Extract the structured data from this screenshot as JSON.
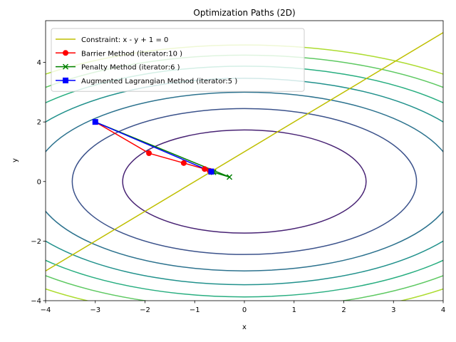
{
  "chart_data": {
    "type": "line",
    "title": "Optimization Paths (2D)",
    "xlabel": "x",
    "ylabel": "y",
    "xlim": [
      -4,
      4
    ],
    "ylim": [
      -4,
      5.4
    ],
    "xticks": [
      -4,
      -3,
      -2,
      -1,
      0,
      1,
      2,
      3,
      4
    ],
    "yticks": [
      -4,
      -2,
      0,
      2,
      4
    ],
    "grid": false,
    "legend_position": "top-left",
    "contours": {
      "function": "x^2 + 2*y^2",
      "levels": [
        6,
        12,
        18,
        24,
        30,
        36,
        42
      ],
      "colors": [
        "#482374",
        "#3b528b",
        "#2c728e",
        "#21918c",
        "#28ae80",
        "#5ec962",
        "#addc30"
      ]
    },
    "series": [
      {
        "name": "Constraint: x - y + 1 = 0",
        "color": "#bfbf00",
        "marker": "none",
        "x": [
          -4,
          4
        ],
        "y": [
          -3,
          5
        ]
      },
      {
        "name": "Barrier Method (iterator:10 )",
        "color": "#ff0000",
        "marker": "circle",
        "x": [
          -3.0,
          -1.92,
          -1.22,
          -0.8,
          -0.7,
          -0.67,
          -0.667,
          -0.667,
          -0.667,
          -0.667
        ],
        "y": [
          2.0,
          0.95,
          0.62,
          0.42,
          0.36,
          0.34,
          0.333,
          0.333,
          0.333,
          0.333
        ]
      },
      {
        "name": "Penalty Method (iterator:6 )",
        "color": "#008000",
        "marker": "x",
        "x": [
          -3.0,
          -0.3,
          -0.62,
          -0.66,
          -0.665,
          -0.667
        ],
        "y": [
          2.0,
          0.15,
          0.31,
          0.33,
          0.333,
          0.333
        ]
      },
      {
        "name": "Augmented Lagrangian Method (iterator:5 )",
        "color": "#0000ff",
        "marker": "square",
        "x": [
          -3.0,
          -0.667,
          -0.667,
          -0.667,
          -0.667
        ],
        "y": [
          2.0,
          0.333,
          0.333,
          0.333,
          0.333
        ]
      }
    ]
  }
}
